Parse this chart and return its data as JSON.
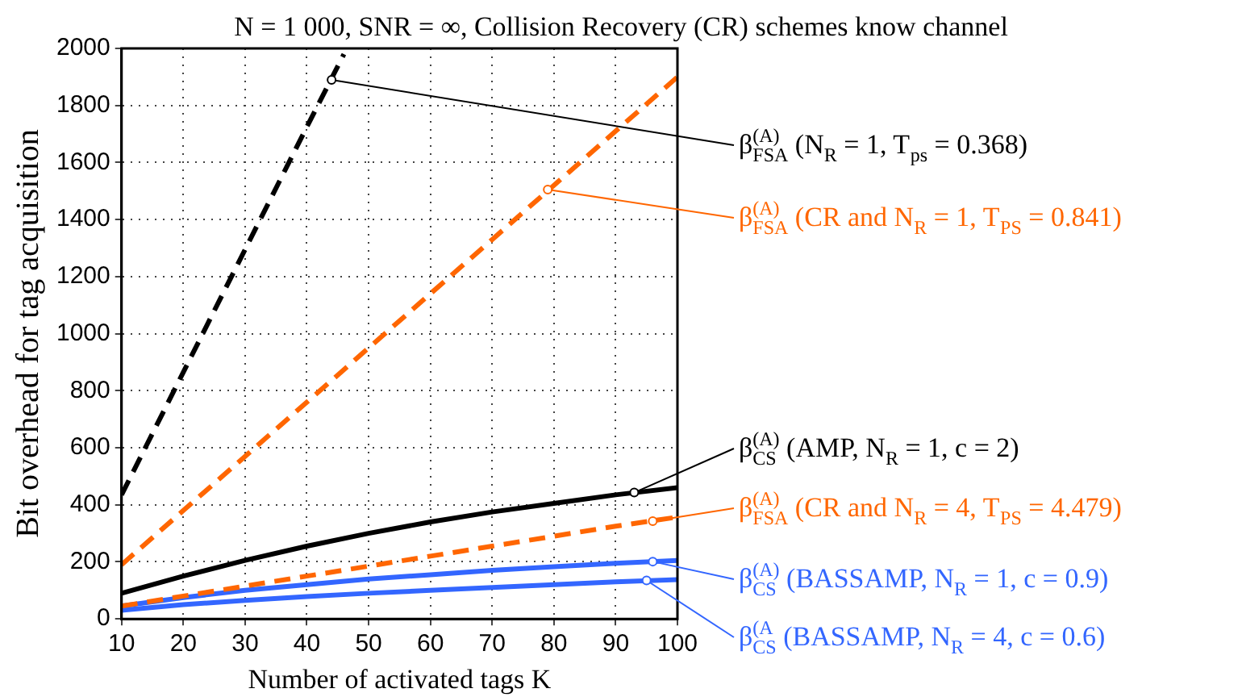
{
  "chart_data": {
    "type": "line",
    "title": "N = 1 000, SNR = ∞, Collision Recovery (CR) schemes know channel",
    "xlabel": "Number of activated tags K",
    "ylabel": "Bit overhead for tag acquisition",
    "xlim": [
      10,
      100
    ],
    "xticks": [
      10,
      20,
      30,
      40,
      50,
      60,
      70,
      80,
      90,
      100
    ],
    "ylim": [
      0,
      2000
    ],
    "yticks": [
      0,
      200,
      400,
      600,
      800,
      1000,
      1200,
      1400,
      1600,
      1800,
      2000
    ],
    "grid": true,
    "marker": "none",
    "series": [
      {
        "color": "#000000",
        "line_style": "dashed",
        "x": [
          10,
          20,
          30,
          40,
          46
        ],
        "values": [
          435,
          865,
          1295,
          1725,
          1980
        ]
      },
      {
        "color": "#ff6600",
        "line_style": "dashed",
        "x": [
          10,
          20,
          30,
          40,
          50,
          60,
          70,
          80,
          90,
          100
        ],
        "values": [
          190,
          380,
          570,
          760,
          950,
          1140,
          1330,
          1520,
          1710,
          1900
        ]
      },
      {
        "color": "#000000",
        "line_style": "solid",
        "x": [
          10,
          20,
          30,
          40,
          50,
          60,
          70,
          80,
          90,
          100
        ],
        "values": [
          90,
          150,
          205,
          255,
          300,
          340,
          375,
          405,
          435,
          460
        ]
      },
      {
        "color": "#ff6600",
        "line_style": "dashed",
        "x": [
          10,
          20,
          30,
          40,
          50,
          60,
          70,
          80,
          90,
          100
        ],
        "values": [
          45,
          80,
          115,
          150,
          185,
          220,
          255,
          290,
          325,
          357
        ]
      },
      {
        "color": "#3366ff",
        "line_style": "solid",
        "x": [
          10,
          20,
          30,
          40,
          50,
          60,
          70,
          80,
          90,
          100
        ],
        "values": [
          45,
          75,
          100,
          120,
          140,
          155,
          170,
          183,
          195,
          205
        ]
      },
      {
        "color": "#3366ff",
        "line_style": "solid",
        "x": [
          10,
          20,
          30,
          40,
          50,
          60,
          70,
          80,
          90,
          100
        ],
        "values": [
          30,
          50,
          65,
          78,
          90,
          100,
          110,
          120,
          130,
          138
        ]
      }
    ],
    "annotations": [
      {
        "text": "β$_{FSA}$$^{(A)}$ (N$_{R}$ = 1, T$_{ps}$ = 0.368)",
        "x": 44,
        "y": 1890
      },
      {
        "text": "β$_{FSA}$$^{(A)}$ (CR and N$_{R}$ = 1, T$_{PS}$ = 0.841)",
        "x": 79,
        "y": 1505
      },
      {
        "text": "β$_{CS}$$^{(A)}$ (AMP, N$_{R}$ = 1, c = 2)",
        "x": 93,
        "y": 443
      },
      {
        "text": "β$_{FSA}$$^{(A)}$ (CR and N$_{R}$ = 4, T$_{PS}$ = 4.479)",
        "x": 96,
        "y": 343
      },
      {
        "text": "β$_{CS}$$^{(A)}$ (BASSAMP, N$_{R}$ = 1, c = 0.9)",
        "x": 96,
        "y": 201
      },
      {
        "text": "β$_{CS}$$^{(A}$ (BASSAMP, N$_{R}$ = 4, c = 0.6)",
        "x": 95,
        "y": 135
      }
    ]
  }
}
